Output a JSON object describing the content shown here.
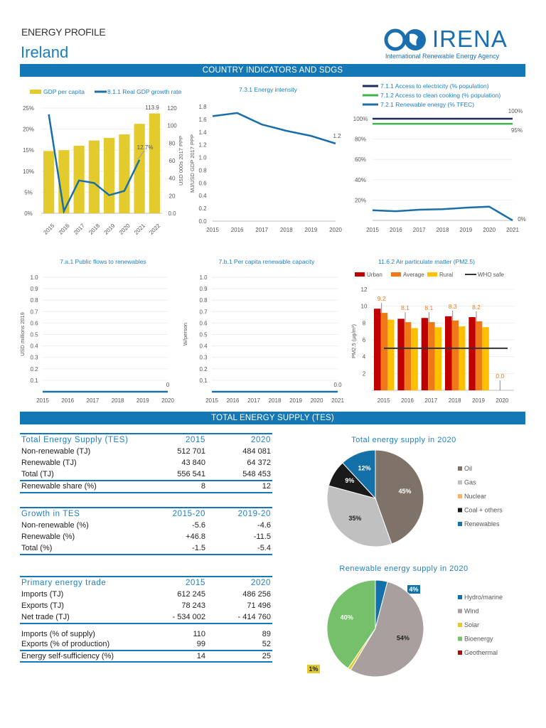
{
  "header": {
    "eyebrow": "ENERGY PROFILE",
    "country": "Ireland",
    "logo_text": "IRENA",
    "logo_subtitle": "International Renewable Energy Agency"
  },
  "sections": {
    "indicators": "COUNTRY INDICATORS AND SDGS",
    "tes": "TOTAL ENERGY SUPPLY (TES)"
  },
  "colors": {
    "band": "#1478b6",
    "title": "#1f7fbf",
    "gdp_bar": "#e3cb2e",
    "line_blue": "#1a6fa8",
    "electricity": "#1f2a5e",
    "cooking": "#3cb44b",
    "urban": "#c00000",
    "average": "#f07818",
    "rural": "#ffc000",
    "who": "#333333"
  },
  "chart_data": [
    {
      "id": "gdp",
      "type": "bar+line",
      "legend": [
        "GDP per capita",
        "8.1.1 Real GDP growth rate"
      ],
      "categories": [
        "2015",
        "2016",
        "2017",
        "2018",
        "2019",
        "2020",
        "2021",
        "2022"
      ],
      "bars": {
        "name": "GDP per capita",
        "values": [
          71,
          72,
          77,
          83,
          86,
          90,
          102,
          113.9
        ],
        "axis": "right",
        "ylim": [
          0,
          120
        ],
        "ticks": [
          "0.0",
          "20",
          "40",
          "60",
          "80",
          "100",
          "120"
        ],
        "ylabel": "USD 000s 2017 PPP",
        "label_last": "113.9"
      },
      "line": {
        "name": "8.1.1 Real GDP growth rate",
        "values": [
          23.5,
          0.5,
          7.8,
          7.2,
          4.3,
          5.3,
          12.7
        ],
        "axis": "left",
        "ylim": [
          0,
          25
        ],
        "ticks": [
          "0%",
          "5%",
          "10%",
          "15%",
          "20%",
          "25%"
        ],
        "label_last": "12.7%"
      }
    },
    {
      "id": "intensity",
      "type": "line",
      "title": "7.3.1 Energy intensity",
      "x": [
        "2015",
        "2016",
        "2017",
        "2018",
        "2019",
        "2020"
      ],
      "values": [
        1.65,
        1.7,
        1.52,
        1.42,
        1.34,
        1.22
      ],
      "ylim": [
        0,
        1.8
      ],
      "ticks": [
        "0.0",
        "0.2",
        "0.4",
        "0.6",
        "0.8",
        "1.0",
        "1.2",
        "1.4",
        "1.6",
        "1.8"
      ],
      "ylabel": "MJ/USD GDP 2017 PPP",
      "label_last": "1.2"
    },
    {
      "id": "access",
      "type": "line",
      "x": [
        "2015",
        "2016",
        "2017",
        "2018",
        "2019",
        "2020",
        "2021"
      ],
      "ylim": [
        0,
        100
      ],
      "ticks": [
        "",
        "20%",
        "40%",
        "60%",
        "80%",
        "100%"
      ],
      "series": [
        {
          "name": "7.1.1 Access to electricity (% population)",
          "values": [
            100,
            100,
            100,
            100,
            100,
            100,
            100
          ],
          "label": "100%"
        },
        {
          "name": "7.1.2 Access to clean cooking (% population)",
          "values": [
            95,
            95,
            95,
            95,
            95,
            95,
            95
          ],
          "label": "95%"
        },
        {
          "name": "7.2.1 Renewable energy (% TFEC)",
          "values": [
            10,
            9,
            10.5,
            11,
            12.5,
            13.5,
            0
          ],
          "label": "0%"
        }
      ]
    },
    {
      "id": "flows",
      "type": "line",
      "title": "7.a.1 Public flows to renewables",
      "x": [
        "2015",
        "2016",
        "2017",
        "2018",
        "2019",
        "2020"
      ],
      "values": [
        0,
        0,
        0,
        0,
        0,
        0
      ],
      "ylim": [
        0,
        1.0
      ],
      "ticks": [
        "",
        "0.1",
        "0.2",
        "0.3",
        "0.4",
        "0.5",
        "0.6",
        "0.7",
        "0.8",
        "0.9",
        "1.0"
      ],
      "ylabel": "USD millions 2019",
      "label_last": "0"
    },
    {
      "id": "capacity",
      "type": "line",
      "title": "7.b.1 Per capita renewable capacity",
      "x": [
        "2015",
        "2016",
        "2017",
        "2018",
        "2019",
        "2020",
        "2021"
      ],
      "values": [
        0,
        0,
        0,
        0,
        0,
        0,
        0
      ],
      "ylim": [
        0,
        1.0
      ],
      "ticks": [
        "",
        "0.1",
        "0.2",
        "0.3",
        "0.4",
        "0.5",
        "0.6",
        "0.7",
        "0.8",
        "0.9",
        "1.0"
      ],
      "ylabel": "W/person",
      "label_last": "0.0"
    },
    {
      "id": "pm",
      "type": "bar",
      "title": "11.6.2 Air particulate matter (PM2.5)",
      "categories": [
        "2015",
        "2016",
        "2017",
        "2018",
        "2019",
        "2020"
      ],
      "ylim": [
        0,
        12
      ],
      "ticks": [
        "",
        "2",
        "4",
        "6",
        "8",
        "10",
        "12"
      ],
      "ylabel": "PM2.5 (µg/m³)",
      "series": [
        {
          "name": "Urban",
          "values": [
            9.7,
            8.5,
            8.6,
            8.8,
            8.7,
            0
          ]
        },
        {
          "name": "Average",
          "values": [
            9.2,
            8.1,
            8.1,
            8.3,
            8.2,
            0
          ]
        },
        {
          "name": "Rural",
          "values": [
            8.4,
            7.4,
            7.5,
            7.6,
            7.5,
            0
          ]
        }
      ],
      "who_safe": {
        "name": "WHO safe",
        "value": 5
      },
      "labels": [
        "9.2",
        "8.1",
        "8.1",
        "8.3",
        "8.2",
        "0.0"
      ]
    },
    {
      "id": "tes_pie",
      "type": "pie",
      "title": "Total energy supply in 2020",
      "slices": [
        {
          "name": "Oil",
          "value": 45,
          "label": "45%",
          "color": "#7f7369"
        },
        {
          "name": "Gas",
          "value": 35,
          "label": "35%",
          "color": "#c0c0c0"
        },
        {
          "name": "Nuclear",
          "value": 0,
          "label": "",
          "color": "#f9b26b"
        },
        {
          "name": "Coal + others",
          "value": 9,
          "label": "9%",
          "color": "#1a1a1a"
        },
        {
          "name": "Renewables",
          "value": 12,
          "label": "12%",
          "color": "#1470a8"
        }
      ]
    },
    {
      "id": "re_pie",
      "type": "pie",
      "title": "Renewable energy supply in 2020",
      "slices": [
        {
          "name": "Hydro/marine",
          "value": 4,
          "label": "4%",
          "color": "#1470a8"
        },
        {
          "name": "Wind",
          "value": 54,
          "label": "54%",
          "color": "#aa9f9f"
        },
        {
          "name": "Solar",
          "value": 1,
          "label": "1%",
          "color": "#e3cb2e"
        },
        {
          "name": "Bioenergy",
          "value": 40,
          "label": "40%",
          "color": "#76c06b"
        },
        {
          "name": "Geothermal",
          "value": 0,
          "label": "",
          "color": "#a01010"
        }
      ]
    }
  ],
  "tables": {
    "tes": {
      "header": [
        "Total Energy Supply (TES)",
        "2015",
        "2020"
      ],
      "rows": [
        [
          "Non-renewable (TJ)",
          "512 701",
          "484 081"
        ],
        [
          "Renewable (TJ)",
          "43 840",
          "64 372"
        ],
        [
          "Total (TJ)",
          "556 541",
          "548 453"
        ],
        [
          "Renewable share (%)",
          "8",
          "12"
        ]
      ]
    },
    "growth": {
      "header": [
        "Growth in TES",
        "2015-20",
        "2019-20"
      ],
      "rows": [
        [
          "Non-renewable (%)",
          "-5.6",
          "-4.6"
        ],
        [
          "Renewable (%)",
          "+46.8",
          "-11.5"
        ],
        [
          "Total (%)",
          "-1.5",
          "-5.4"
        ]
      ]
    },
    "trade": {
      "header": [
        "Primary energy trade",
        "2015",
        "2020"
      ],
      "rows": [
        [
          "Imports (TJ)",
          "612 245",
          "486 256"
        ],
        [
          "Exports (TJ)",
          "78 243",
          "71 496"
        ],
        [
          "Net trade (TJ)",
          "- 534 002",
          "- 414 760"
        ],
        [
          "Imports (% of supply)",
          "110",
          "89"
        ],
        [
          "Exports (% of production)",
          "99",
          "52"
        ],
        [
          "Energy self-sufficiency (%)",
          "14",
          "25"
        ]
      ]
    }
  }
}
